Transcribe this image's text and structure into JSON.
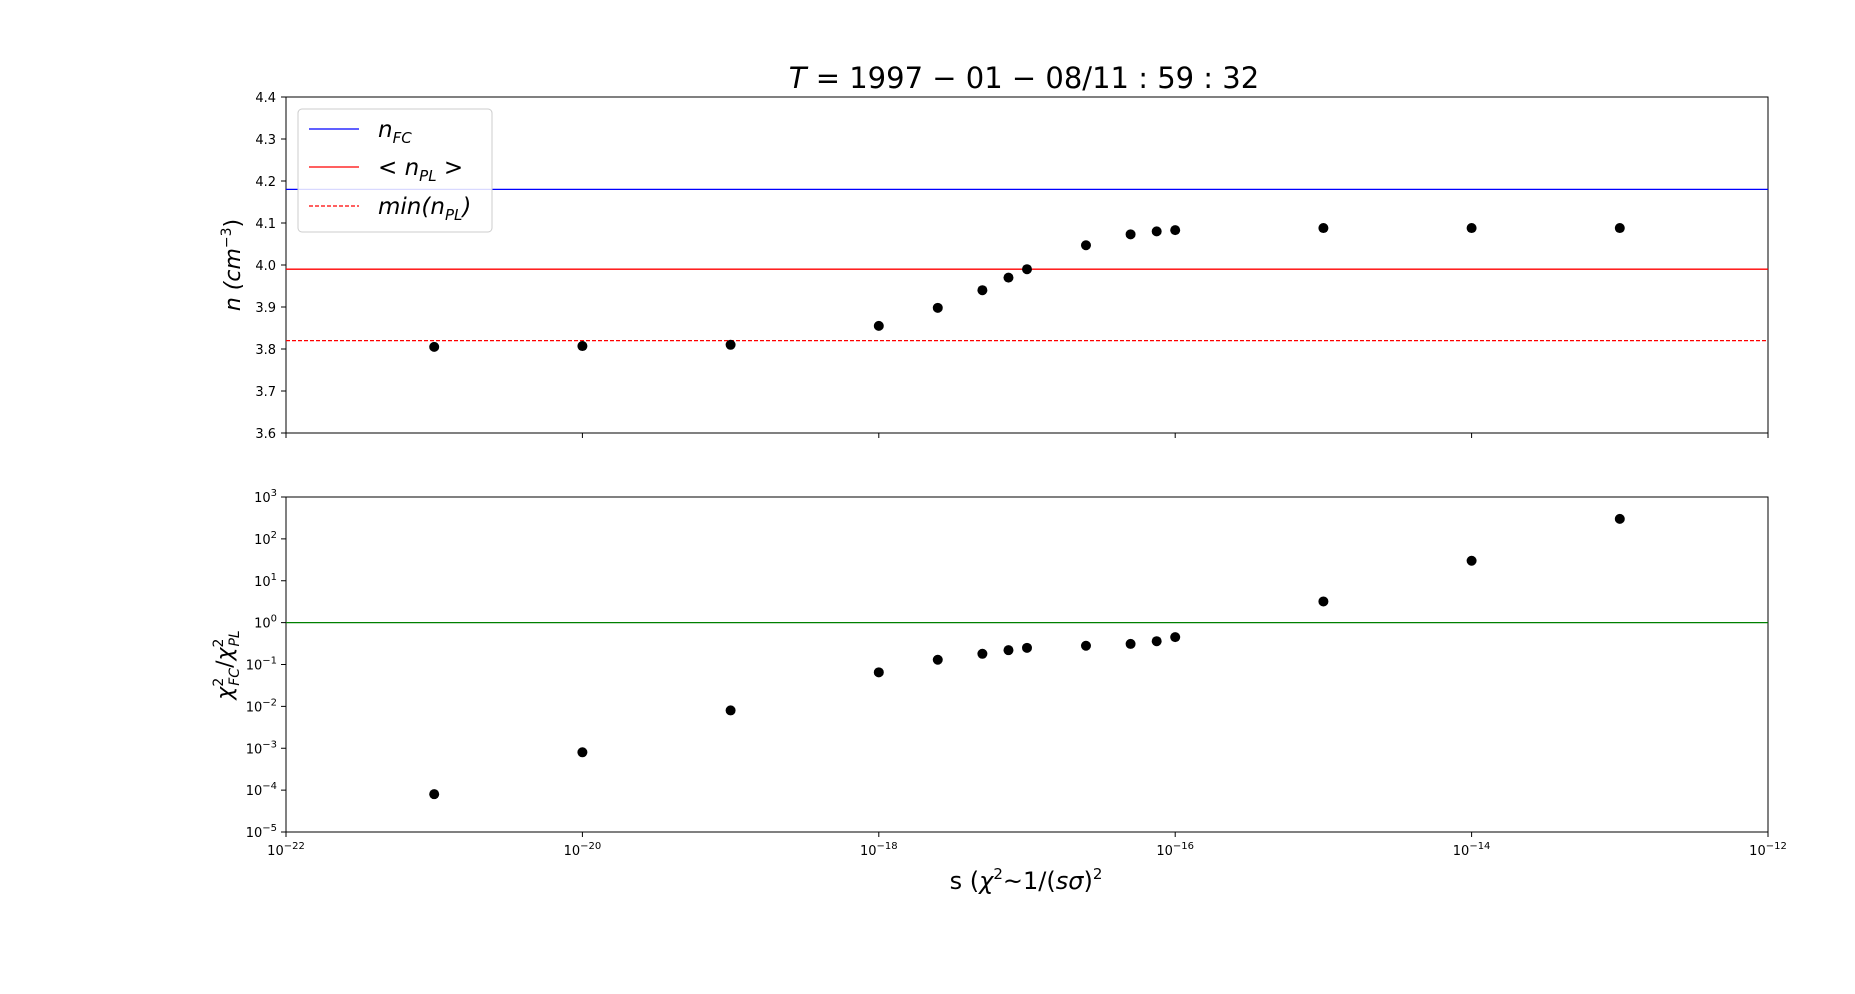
{
  "figure": {
    "title": {
      "italic": "T",
      "rest": " = 1997 − 01 − 08/11 : 59 : 32"
    },
    "xlabel": {
      "pre": "s (",
      "chi": "χ",
      "sup": "2",
      "mid": "~1/(",
      "s": "s",
      "sigma": "σ",
      "post": ")",
      "sup2": "2"
    }
  },
  "chart_data": [
    {
      "type": "scatter",
      "panel": "top",
      "ylabel": {
        "pre": "n (",
        "unit": "cm",
        "sup": "−3",
        "post": ")"
      },
      "xscale": "log",
      "xlim": [
        1e-22,
        1e-12
      ],
      "ylim": [
        3.6,
        4.4
      ],
      "yticks": [
        "3.6",
        "3.7",
        "3.8",
        "3.9",
        "4.0",
        "4.1",
        "4.2",
        "4.3",
        "4.4"
      ],
      "ytick_values": [
        3.6,
        3.7,
        3.8,
        3.9,
        4.0,
        4.1,
        4.2,
        4.3,
        4.4
      ],
      "grid": false,
      "legend_position": "upper-left",
      "hlines": [
        {
          "y": 4.18,
          "color": "#0000ff",
          "style": "solid",
          "label": {
            "main": "n",
            "sub": "FC"
          }
        },
        {
          "y": 3.99,
          "color": "#ff0000",
          "style": "solid",
          "label": {
            "pre": "< n",
            "sub": "PL",
            "post": " >"
          }
        },
        {
          "y": 3.82,
          "color": "#ff0000",
          "style": "dashed",
          "label": {
            "pre": "min(n",
            "sub": "PL",
            "post": ")"
          }
        }
      ],
      "points": {
        "x": [
          1e-21,
          1e-20,
          1e-19,
          1e-18,
          2.5e-18,
          5e-18,
          7.5e-18,
          1e-17,
          2.5e-17,
          5e-17,
          7.5e-17,
          1e-16,
          1e-15,
          1e-14,
          1e-13
        ],
        "y": [
          3.805,
          3.807,
          3.81,
          3.855,
          3.898,
          3.94,
          3.97,
          3.99,
          4.047,
          4.073,
          4.08,
          4.083,
          4.088,
          4.088,
          4.088
        ]
      }
    },
    {
      "type": "scatter",
      "panel": "bottom",
      "ylabel": {
        "chi1": "χ",
        "sup1": "2",
        "sub1": "FC",
        "slash": "/",
        "chi2": "χ",
        "sup2": "2",
        "sub2": "PL"
      },
      "xscale": "log",
      "yscale": "log",
      "xlim": [
        1e-22,
        1e-12
      ],
      "ylim": [
        1e-05,
        1000
      ],
      "xticks": [
        {
          "base": "10",
          "exp": "−22"
        },
        {
          "base": "10",
          "exp": "−20"
        },
        {
          "base": "10",
          "exp": "−18"
        },
        {
          "base": "10",
          "exp": "−16"
        },
        {
          "base": "10",
          "exp": "−14"
        },
        {
          "base": "10",
          "exp": "−12"
        }
      ],
      "xtick_values": [
        1e-22,
        1e-20,
        1e-18,
        1e-16,
        1e-14,
        1e-12
      ],
      "yticks": [
        {
          "base": "10",
          "exp": "−5"
        },
        {
          "base": "10",
          "exp": "−4"
        },
        {
          "base": "10",
          "exp": "−3"
        },
        {
          "base": "10",
          "exp": "−2"
        },
        {
          "base": "10",
          "exp": "−1"
        },
        {
          "base": "10",
          "exp": "0"
        },
        {
          "base": "10",
          "exp": "1"
        },
        {
          "base": "10",
          "exp": "2"
        },
        {
          "base": "10",
          "exp": "3"
        }
      ],
      "ytick_values": [
        1e-05,
        0.0001,
        0.001,
        0.01,
        0.1,
        1,
        10,
        100,
        1000
      ],
      "grid": false,
      "hlines": [
        {
          "y": 1,
          "color": "#008000",
          "style": "solid"
        }
      ],
      "points": {
        "x": [
          1e-21,
          1e-20,
          1e-19,
          1e-18,
          2.5e-18,
          5e-18,
          7.5e-18,
          1e-17,
          2.5e-17,
          5e-17,
          7.5e-17,
          1e-16,
          1e-15,
          1e-14,
          1e-13
        ],
        "y": [
          8e-05,
          0.0008,
          0.008,
          0.065,
          0.13,
          0.18,
          0.22,
          0.25,
          0.28,
          0.31,
          0.36,
          0.45,
          3.2,
          30,
          300
        ]
      }
    }
  ]
}
